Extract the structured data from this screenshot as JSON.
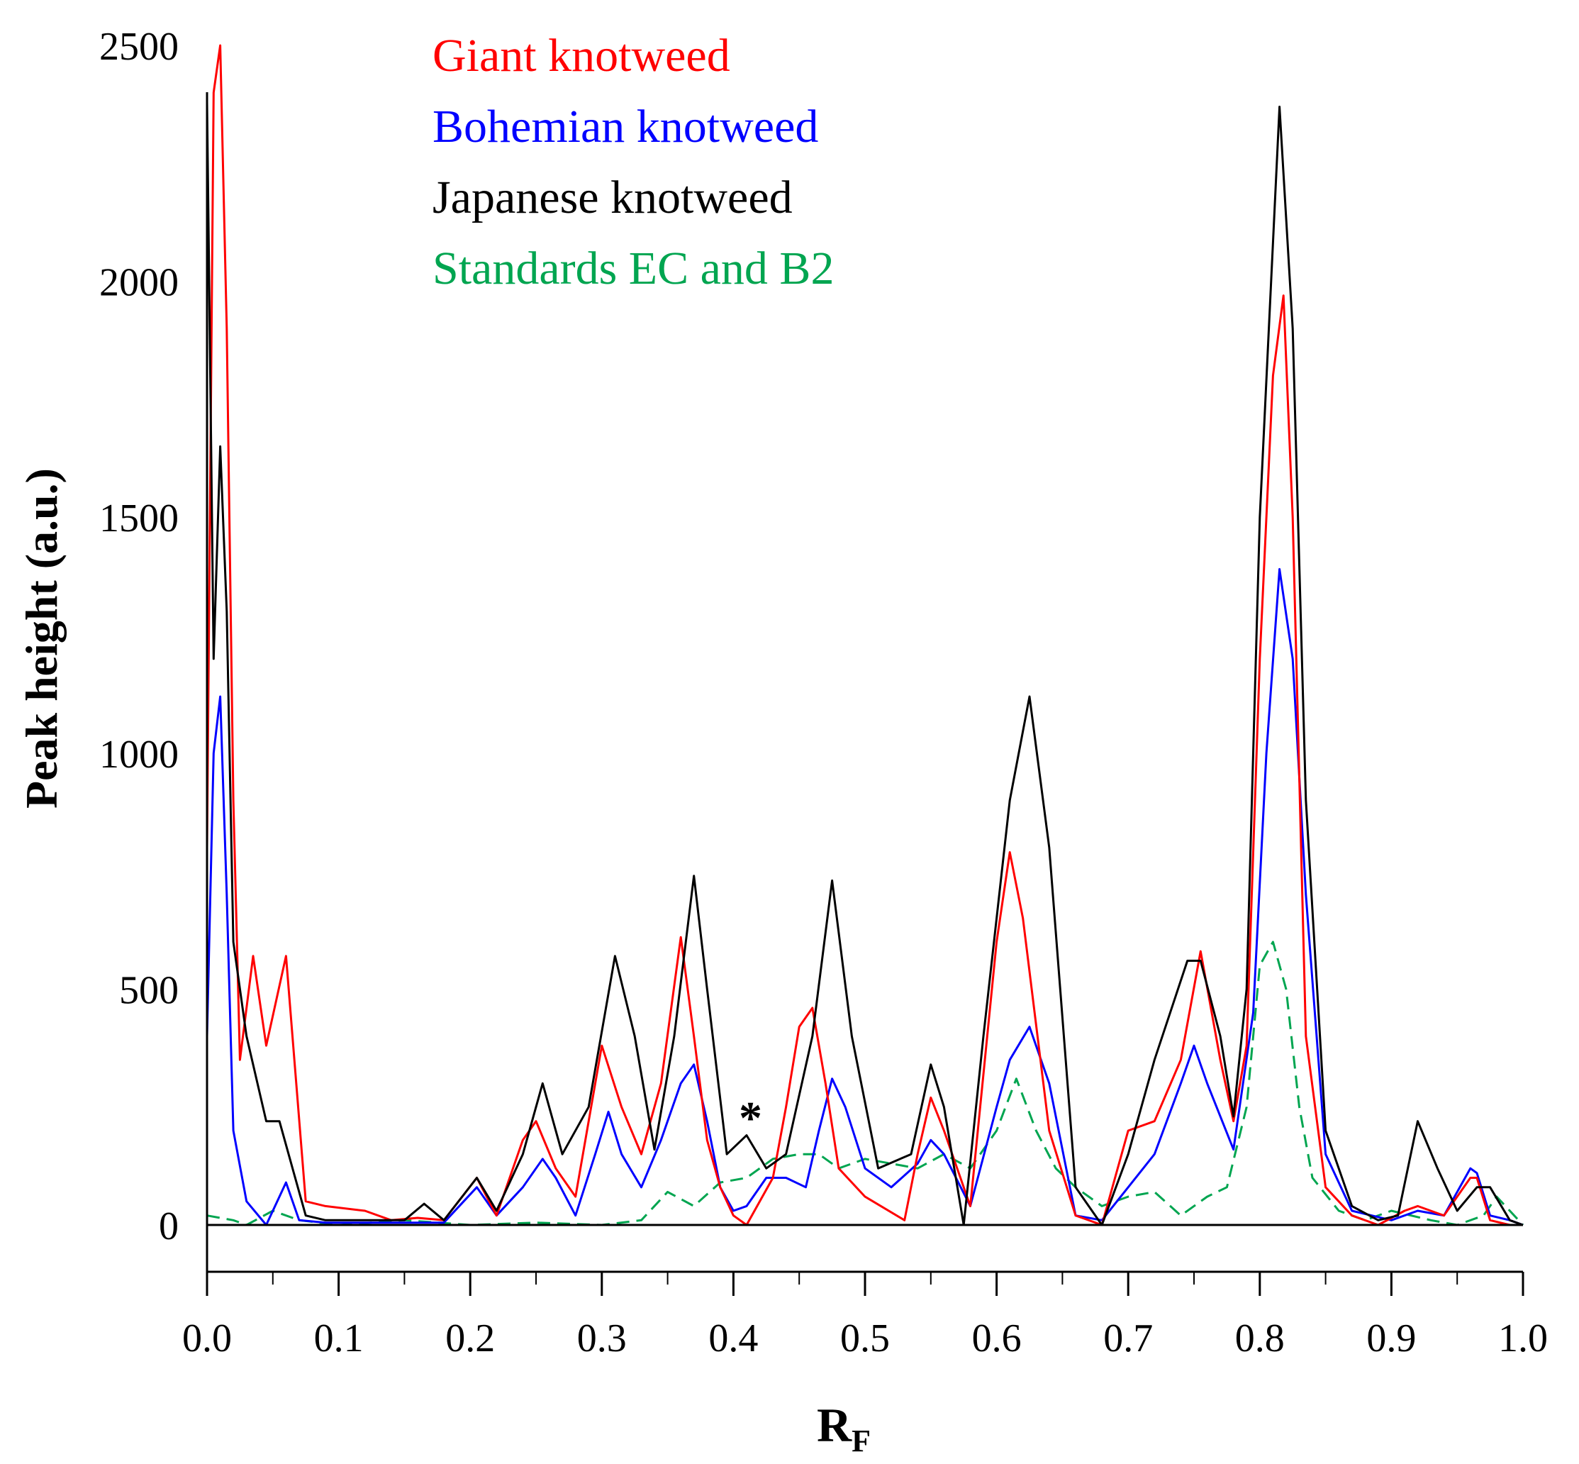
{
  "chart_data": {
    "type": "line",
    "title": "",
    "xlabel_main": "R",
    "xlabel_sub": "F",
    "ylabel": "Peak height (a.u.)",
    "xlim": [
      0.0,
      1.0
    ],
    "ylim": [
      -100,
      2500
    ],
    "x_ticks": [
      "0.0",
      "0.1",
      "0.2",
      "0.3",
      "0.4",
      "0.5",
      "0.6",
      "0.7",
      "0.8",
      "0.9",
      "1.0"
    ],
    "y_ticks": [
      "0",
      "500",
      "1000",
      "1500",
      "2000",
      "2500"
    ],
    "legend_placement": "top-center",
    "annotation": {
      "text": "*",
      "x": 0.413,
      "y": 230
    },
    "series": [
      {
        "name": "Giant knotweed",
        "color": "#ff0000",
        "dash": "solid",
        "x": [
          0.0,
          0.005,
          0.01,
          0.015,
          0.02,
          0.025,
          0.035,
          0.045,
          0.06,
          0.075,
          0.09,
          0.12,
          0.14,
          0.16,
          0.18,
          0.205,
          0.22,
          0.24,
          0.25,
          0.265,
          0.28,
          0.3,
          0.315,
          0.33,
          0.345,
          0.36,
          0.37,
          0.38,
          0.39,
          0.4,
          0.41,
          0.43,
          0.44,
          0.45,
          0.46,
          0.47,
          0.48,
          0.5,
          0.53,
          0.54,
          0.55,
          0.56,
          0.58,
          0.6,
          0.61,
          0.62,
          0.64,
          0.66,
          0.68,
          0.7,
          0.72,
          0.74,
          0.755,
          0.77,
          0.78,
          0.79,
          0.8,
          0.81,
          0.818,
          0.825,
          0.835,
          0.85,
          0.87,
          0.89,
          0.91,
          0.92,
          0.94,
          0.96,
          0.965,
          0.975,
          0.99,
          1.0
        ],
        "y": [
          800,
          2400,
          2500,
          1900,
          900,
          350,
          570,
          380,
          570,
          50,
          40,
          30,
          10,
          15,
          10,
          100,
          20,
          180,
          220,
          120,
          60,
          380,
          250,
          150,
          300,
          610,
          400,
          180,
          80,
          20,
          0,
          100,
          250,
          420,
          460,
          300,
          120,
          60,
          10,
          150,
          270,
          200,
          40,
          600,
          790,
          650,
          200,
          20,
          0,
          200,
          220,
          350,
          580,
          350,
          220,
          380,
          1200,
          1800,
          1970,
          1500,
          400,
          80,
          20,
          0,
          30,
          40,
          20,
          100,
          100,
          10,
          0,
          0
        ]
      },
      {
        "name": "Bohemian knotweed",
        "color": "#0000ff",
        "dash": "solid",
        "x": [
          0.0,
          0.005,
          0.01,
          0.015,
          0.02,
          0.03,
          0.045,
          0.055,
          0.06,
          0.07,
          0.09,
          0.12,
          0.15,
          0.18,
          0.205,
          0.22,
          0.24,
          0.255,
          0.265,
          0.28,
          0.295,
          0.305,
          0.315,
          0.33,
          0.345,
          0.36,
          0.37,
          0.38,
          0.39,
          0.4,
          0.41,
          0.425,
          0.44,
          0.455,
          0.465,
          0.475,
          0.485,
          0.5,
          0.52,
          0.54,
          0.55,
          0.56,
          0.58,
          0.6,
          0.61,
          0.625,
          0.64,
          0.66,
          0.68,
          0.7,
          0.72,
          0.74,
          0.75,
          0.76,
          0.78,
          0.795,
          0.805,
          0.815,
          0.825,
          0.835,
          0.85,
          0.87,
          0.9,
          0.92,
          0.94,
          0.96,
          0.965,
          0.975,
          0.99,
          1.0
        ],
        "y": [
          400,
          1000,
          1120,
          700,
          200,
          50,
          0,
          60,
          90,
          10,
          5,
          5,
          5,
          5,
          80,
          20,
          80,
          140,
          100,
          20,
          150,
          240,
          150,
          80,
          180,
          300,
          340,
          220,
          80,
          30,
          40,
          100,
          100,
          80,
          200,
          310,
          250,
          120,
          80,
          130,
          180,
          150,
          40,
          250,
          350,
          420,
          300,
          20,
          10,
          80,
          150,
          300,
          380,
          300,
          160,
          450,
          1000,
          1390,
          1200,
          700,
          150,
          30,
          10,
          30,
          20,
          120,
          110,
          20,
          10,
          0
        ]
      },
      {
        "name": "Japanese knotweed",
        "color": "#000000",
        "dash": "solid",
        "x": [
          0.0,
          0.005,
          0.01,
          0.015,
          0.02,
          0.03,
          0.045,
          0.055,
          0.065,
          0.075,
          0.09,
          0.12,
          0.15,
          0.165,
          0.18,
          0.205,
          0.22,
          0.24,
          0.255,
          0.27,
          0.29,
          0.31,
          0.325,
          0.34,
          0.355,
          0.37,
          0.38,
          0.395,
          0.41,
          0.425,
          0.44,
          0.46,
          0.475,
          0.49,
          0.51,
          0.535,
          0.55,
          0.56,
          0.575,
          0.59,
          0.61,
          0.625,
          0.64,
          0.66,
          0.68,
          0.7,
          0.72,
          0.745,
          0.755,
          0.77,
          0.78,
          0.79,
          0.8,
          0.815,
          0.825,
          0.835,
          0.85,
          0.87,
          0.89,
          0.905,
          0.92,
          0.935,
          0.95,
          0.965,
          0.975,
          0.99,
          1.0
        ],
        "y": [
          2380,
          1200,
          1650,
          1300,
          600,
          400,
          220,
          220,
          120,
          20,
          10,
          10,
          10,
          45,
          10,
          100,
          30,
          150,
          300,
          150,
          250,
          570,
          400,
          160,
          400,
          740,
          500,
          150,
          190,
          120,
          150,
          400,
          730,
          400,
          120,
          150,
          340,
          250,
          0,
          400,
          900,
          1120,
          800,
          80,
          0,
          150,
          350,
          560,
          560,
          400,
          230,
          500,
          1500,
          2370,
          1900,
          900,
          200,
          40,
          10,
          20,
          220,
          120,
          30,
          80,
          80,
          10,
          0
        ]
      },
      {
        "name": "Standards EC and B2",
        "color": "#00a550",
        "dash": "dashed",
        "x": [
          0.0,
          0.02,
          0.03,
          0.05,
          0.07,
          0.1,
          0.15,
          0.2,
          0.25,
          0.3,
          0.33,
          0.35,
          0.37,
          0.39,
          0.41,
          0.43,
          0.45,
          0.465,
          0.48,
          0.5,
          0.52,
          0.54,
          0.56,
          0.58,
          0.6,
          0.615,
          0.63,
          0.645,
          0.66,
          0.68,
          0.7,
          0.72,
          0.74,
          0.76,
          0.775,
          0.79,
          0.8,
          0.81,
          0.82,
          0.83,
          0.84,
          0.86,
          0.88,
          0.9,
          0.93,
          0.95,
          0.97,
          0.98,
          1.0
        ],
        "y": [
          20,
          10,
          0,
          30,
          10,
          0,
          10,
          0,
          5,
          0,
          10,
          70,
          40,
          90,
          100,
          140,
          150,
          150,
          120,
          140,
          130,
          120,
          150,
          120,
          200,
          310,
          200,
          120,
          80,
          40,
          60,
          70,
          20,
          60,
          80,
          250,
          550,
          600,
          500,
          250,
          100,
          30,
          10,
          30,
          10,
          0,
          20,
          60,
          0
        ]
      }
    ]
  }
}
